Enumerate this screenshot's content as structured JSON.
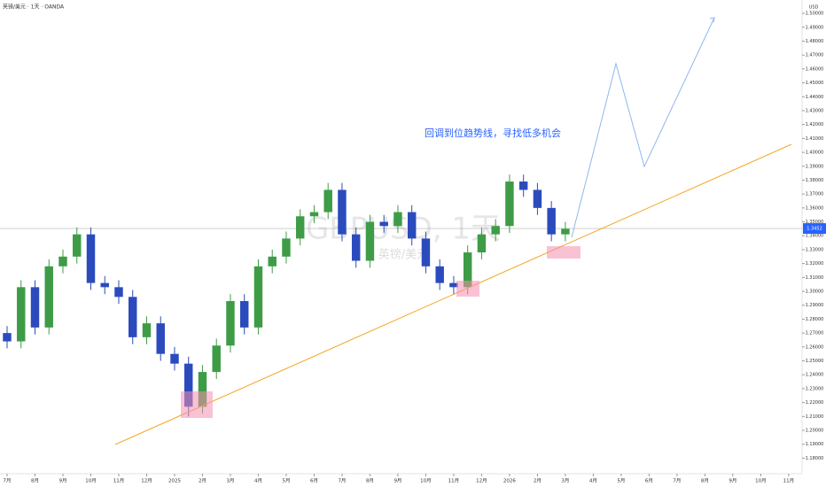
{
  "chart_data": {
    "type": "candlestick",
    "symbol_line": "英镑/美元 · 1天 · OANDA",
    "watermark": "GBPUSD, 1天",
    "watermark_sub": "英镑/美元",
    "annotation": "回调到位趋势线，寻找低多机会",
    "currency": "USD",
    "last_price": 1.3452,
    "up_color": "#3e9c47",
    "down_color": "#2b4bbd",
    "x": [
      0,
      0.5,
      1,
      1.5,
      2,
      2.5,
      3,
      3.5,
      4,
      4.5,
      5,
      5.5,
      6,
      6.5,
      7,
      7.5,
      8,
      8.5,
      9,
      9.5,
      10,
      10.5,
      11,
      11.5,
      12,
      12.5,
      13,
      13.5,
      14,
      14.5,
      15,
      15.5,
      16,
      16.5,
      17,
      17.5,
      18,
      18.5,
      19,
      19.5,
      20
    ],
    "open": [
      1.27,
      1.264,
      1.303,
      1.274,
      1.318,
      1.325,
      1.341,
      1.306,
      1.303,
      1.296,
      1.267,
      1.277,
      1.255,
      1.248,
      1.217,
      1.242,
      1.261,
      1.293,
      1.274,
      1.318,
      1.325,
      1.338,
      1.354,
      1.357,
      1.373,
      1.341,
      1.322,
      1.35,
      1.347,
      1.357,
      1.338,
      1.318,
      1.306,
      1.303,
      1.328,
      1.341,
      1.347,
      1.379,
      1.373,
      1.36,
      1.341
    ],
    "high": [
      1.275,
      1.308,
      1.308,
      1.323,
      1.33,
      1.346,
      1.346,
      1.311,
      1.308,
      1.301,
      1.282,
      1.282,
      1.26,
      1.253,
      1.247,
      1.266,
      1.298,
      1.298,
      1.323,
      1.33,
      1.343,
      1.359,
      1.362,
      1.378,
      1.378,
      1.346,
      1.355,
      1.355,
      1.362,
      1.362,
      1.343,
      1.323,
      1.311,
      1.333,
      1.346,
      1.352,
      1.384,
      1.384,
      1.378,
      1.365,
      1.35
    ],
    "low": [
      1.259,
      1.259,
      1.269,
      1.269,
      1.313,
      1.32,
      1.301,
      1.298,
      1.291,
      1.262,
      1.262,
      1.25,
      1.243,
      1.21,
      1.212,
      1.237,
      1.256,
      1.269,
      1.269,
      1.313,
      1.32,
      1.333,
      1.349,
      1.352,
      1.336,
      1.317,
      1.317,
      1.342,
      1.342,
      1.333,
      1.313,
      1.301,
      1.298,
      1.298,
      1.323,
      1.336,
      1.342,
      1.368,
      1.355,
      1.336,
      1.336
    ],
    "close": [
      1.264,
      1.303,
      1.274,
      1.318,
      1.325,
      1.341,
      1.306,
      1.303,
      1.296,
      1.267,
      1.277,
      1.255,
      1.248,
      1.217,
      1.242,
      1.261,
      1.293,
      1.274,
      1.318,
      1.325,
      1.338,
      1.354,
      1.357,
      1.373,
      1.341,
      1.322,
      1.35,
      1.347,
      1.357,
      1.338,
      1.318,
      1.306,
      1.303,
      1.328,
      1.341,
      1.347,
      1.379,
      1.373,
      1.36,
      1.341,
      1.345
    ],
    "xlim": [
      -0.254,
      28.48
    ],
    "xticks": [
      {
        "value": 0,
        "label": "7月"
      },
      {
        "value": 1,
        "label": "8月"
      },
      {
        "value": 2,
        "label": "9月"
      },
      {
        "value": 3,
        "label": "10月"
      },
      {
        "value": 4,
        "label": "11月"
      },
      {
        "value": 5,
        "label": "12月"
      },
      {
        "value": 6,
        "label": "2025"
      },
      {
        "value": 7,
        "label": "2月"
      },
      {
        "value": 8,
        "label": "3月"
      },
      {
        "value": 9,
        "label": "4月"
      },
      {
        "value": 10,
        "label": "5月"
      },
      {
        "value": 11,
        "label": "6月"
      },
      {
        "value": 12,
        "label": "7月"
      },
      {
        "value": 13,
        "label": "8月"
      },
      {
        "value": 14,
        "label": "9月"
      },
      {
        "value": 15,
        "label": "10月"
      },
      {
        "value": 16,
        "label": "11月"
      },
      {
        "value": 17,
        "label": "12月"
      },
      {
        "value": 18,
        "label": "2026"
      },
      {
        "value": 19,
        "label": "2月"
      },
      {
        "value": 20,
        "label": "3月"
      },
      {
        "value": 21,
        "label": "4月"
      },
      {
        "value": 22,
        "label": "5月"
      },
      {
        "value": 23,
        "label": "6月"
      },
      {
        "value": 24,
        "label": "7月"
      },
      {
        "value": 25,
        "label": "8月"
      },
      {
        "value": 26,
        "label": "9月"
      },
      {
        "value": 27,
        "label": "10月"
      },
      {
        "value": 28,
        "label": "11月"
      }
    ],
    "ylim": [
      1.1688,
      1.5096
    ],
    "yticks": [
      {
        "value": 1.18,
        "label": "1.18000"
      },
      {
        "value": 1.19,
        "label": "1.19000"
      },
      {
        "value": 1.2,
        "label": "1.20000"
      },
      {
        "value": 1.21,
        "label": "1.21000"
      },
      {
        "value": 1.22,
        "label": "1.22000"
      },
      {
        "value": 1.23,
        "label": "1.23000"
      },
      {
        "value": 1.24,
        "label": "1.24000"
      },
      {
        "value": 1.25,
        "label": "1.25000"
      },
      {
        "value": 1.26,
        "label": "1.26000"
      },
      {
        "value": 1.27,
        "label": "1.27000"
      },
      {
        "value": 1.28,
        "label": "1.28000"
      },
      {
        "value": 1.29,
        "label": "1.29000"
      },
      {
        "value": 1.3,
        "label": "1.30000"
      },
      {
        "value": 1.31,
        "label": "1.31000"
      },
      {
        "value": 1.32,
        "label": "1.32000"
      },
      {
        "value": 1.33,
        "label": "1.33000"
      },
      {
        "value": 1.34,
        "label": "1.34000"
      },
      {
        "value": 1.35,
        "label": "1.35000"
      },
      {
        "value": 1.36,
        "label": "1.36000"
      },
      {
        "value": 1.37,
        "label": "1.37000"
      },
      {
        "value": 1.38,
        "label": "1.38000"
      },
      {
        "value": 1.39,
        "label": "1.39000"
      },
      {
        "value": 1.4,
        "label": "1.40000"
      },
      {
        "value": 1.41,
        "label": "1.41000"
      },
      {
        "value": 1.42,
        "label": "1.42000"
      },
      {
        "value": 1.43,
        "label": "1.43000"
      },
      {
        "value": 1.44,
        "label": "1.44000"
      },
      {
        "value": 1.45,
        "label": "1.45000"
      },
      {
        "value": 1.46,
        "label": "1.46000"
      },
      {
        "value": 1.47,
        "label": "1.47000"
      },
      {
        "value": 1.48,
        "label": "1.48000"
      },
      {
        "value": 1.49,
        "label": "1.49000"
      },
      {
        "value": 1.5,
        "label": "1.50000"
      }
    ]
  }
}
